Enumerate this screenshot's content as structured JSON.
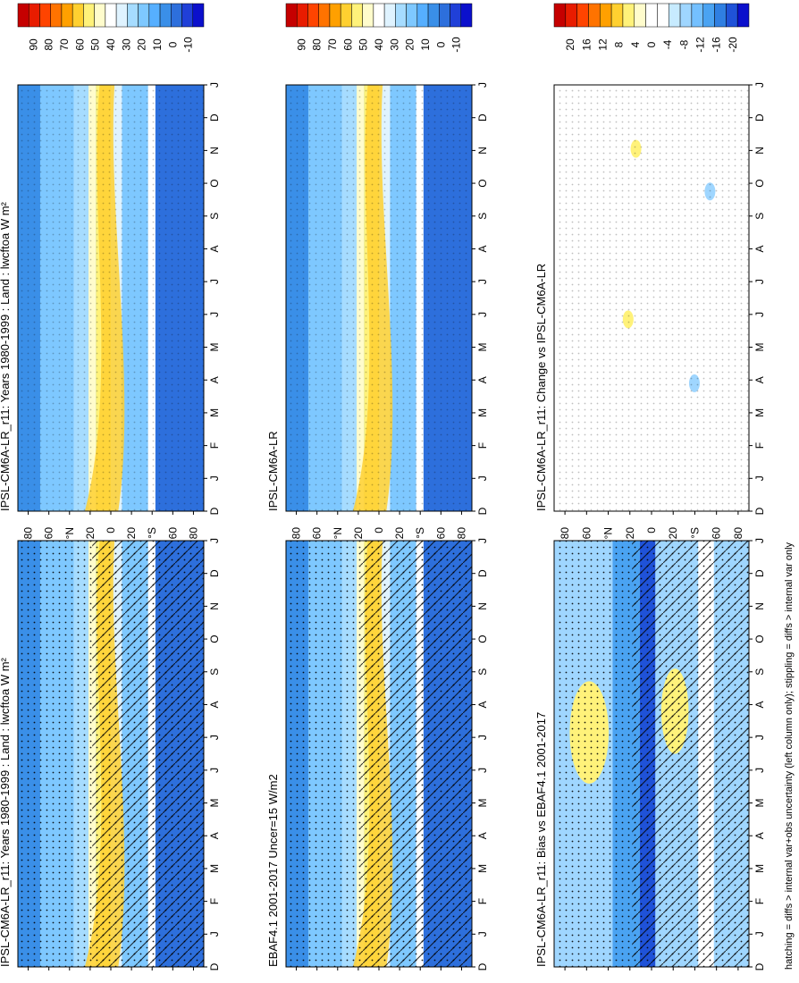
{
  "footer_note": "hatching = diffs > internal var+obs uncertainty (left column only); stippling = diffs > internal var only",
  "chart_data": [
    {
      "type": "heatmap",
      "title": "IPSL-CM6A-LR_r11: Years 1980-1999 : Land : lwcftoa W m²",
      "x_ticks": [
        "D",
        "J",
        "F",
        "M",
        "A",
        "M",
        "J",
        "J",
        "A",
        "S",
        "O",
        "N",
        "D",
        "J"
      ],
      "y_ticks": [
        "80",
        "60",
        "°N",
        "20",
        "0",
        "20",
        "°S",
        "60",
        "80"
      ],
      "colorbar": {
        "ticks": [
          "90",
          "80",
          "70",
          "60",
          "50",
          "40",
          "30",
          "20",
          "10",
          "0",
          "-10"
        ],
        "colors": [
          "#c50000",
          "#e81c00",
          "#ff4400",
          "#ff7300",
          "#ffa000",
          "#ffd030",
          "#fff27a",
          "#fffccc",
          "#ffffff",
          "#dff3ff",
          "#a6dcff",
          "#7ec8ff",
          "#56afff",
          "#3a8fe8",
          "#2d6fdc",
          "#2040d8",
          "#0b10cc"
        ]
      },
      "hatching": true,
      "stippling": true
    },
    {
      "type": "heatmap",
      "title": "IPSL-CM6A-LR_r11: Years 1980-1999 : Land : lwcftoa W m²",
      "x_ticks": [
        "D",
        "J",
        "F",
        "M",
        "A",
        "M",
        "J",
        "J",
        "A",
        "S",
        "O",
        "N",
        "D",
        "J"
      ],
      "y_ticks": [
        "80",
        "60",
        "°N",
        "20",
        "0",
        "20",
        "°S",
        "60",
        "80"
      ],
      "colorbar": {
        "ticks": [
          "90",
          "80",
          "70",
          "60",
          "50",
          "40",
          "30",
          "20",
          "10",
          "0",
          "-10"
        ]
      },
      "hatching": false,
      "stippling": true
    },
    {
      "type": "heatmap",
      "title": "EBAF4.1 2001-2017 Uncer=15 W/m2",
      "x_ticks": [
        "D",
        "J",
        "F",
        "M",
        "A",
        "M",
        "J",
        "J",
        "A",
        "S",
        "O",
        "N",
        "D",
        "J"
      ],
      "y_ticks": [
        "80",
        "60",
        "°N",
        "20",
        "0",
        "20",
        "°S",
        "60",
        "80"
      ],
      "colorbar": {
        "ticks": [
          "90",
          "80",
          "70",
          "60",
          "50",
          "40",
          "30",
          "20",
          "10",
          "0",
          "-10"
        ]
      },
      "hatching": true,
      "stippling": true
    },
    {
      "type": "heatmap",
      "title": "IPSL-CM6A-LR",
      "x_ticks": [
        "D",
        "J",
        "F",
        "M",
        "A",
        "M",
        "J",
        "J",
        "A",
        "S",
        "O",
        "N",
        "D",
        "J"
      ],
      "y_ticks": [
        "80",
        "60",
        "°N",
        "20",
        "0",
        "20",
        "°S",
        "60",
        "80"
      ],
      "colorbar": {
        "ticks": [
          "90",
          "80",
          "70",
          "60",
          "50",
          "40",
          "30",
          "20",
          "10",
          "0",
          "-10"
        ]
      },
      "hatching": false,
      "stippling": true
    },
    {
      "type": "heatmap",
      "title": "IPSL-CM6A-LR_r11: Bias vs EBAF4.1 2001-2017",
      "x_ticks": [
        "D",
        "J",
        "F",
        "M",
        "A",
        "M",
        "J",
        "J",
        "A",
        "S",
        "O",
        "N",
        "D",
        "J"
      ],
      "y_ticks": [
        "80",
        "60",
        "°N",
        "20",
        "0",
        "20",
        "°S",
        "60",
        "80"
      ],
      "colorbar": {
        "ticks": [
          "20",
          "16",
          "12",
          "8",
          "4",
          "0",
          "-4",
          "-8",
          "-12",
          "-16",
          "-20"
        ]
      },
      "hatching": true,
      "stippling": true
    },
    {
      "type": "heatmap",
      "title": "IPSL-CM6A-LR_r11: Change vs IPSL-CM6A-LR",
      "x_ticks": [
        "D",
        "J",
        "F",
        "M",
        "A",
        "M",
        "J",
        "J",
        "A",
        "S",
        "O",
        "N",
        "D",
        "J"
      ],
      "y_ticks": [
        "80",
        "60",
        "°N",
        "20",
        "0",
        "20",
        "°S",
        "60",
        "80"
      ],
      "colorbar": {
        "ticks": [
          "20",
          "16",
          "12",
          "8",
          "4",
          "0",
          "-4",
          "-8",
          "-12",
          "-16",
          "-20"
        ]
      },
      "hatching": false,
      "stippling": true
    }
  ]
}
